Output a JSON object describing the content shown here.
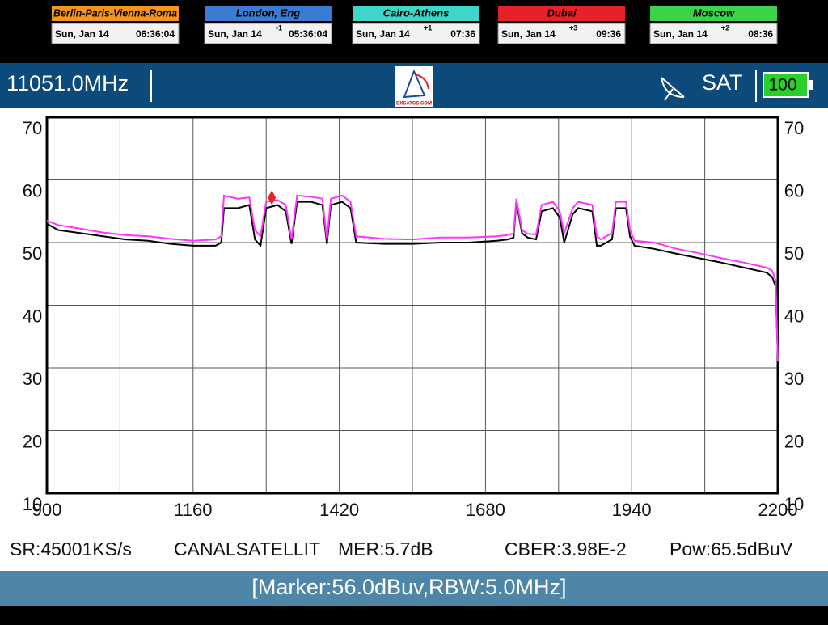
{
  "clocks": [
    {
      "city": "Berlin-Paris-Vienna-Roma",
      "date": "Sun, Jan 14",
      "time": "06:36:04"
    },
    {
      "city": "London, Eng",
      "date": "Sun, Jan 14",
      "offset": "-1",
      "time": "05:36:04"
    },
    {
      "city": "Cairo-Athens",
      "date": "Sun, Jan 14",
      "offset": "+1",
      "time": "07:36"
    },
    {
      "city": "Dubai",
      "date": "Sun, Jan 14",
      "offset": "+3",
      "time": "09:36"
    },
    {
      "city": "Moscow",
      "date": "Sun, Jan 14",
      "offset": "+2",
      "time": "08:36"
    }
  ],
  "header": {
    "frequency": "11051.0MHz",
    "logo": "DXSATCS.COM",
    "band": "SAT",
    "battery": "100"
  },
  "status": {
    "sr": "SR:45001KS/s",
    "provider": "CANALSATELLIT",
    "mer": "MER:5.7dB",
    "cber": "CBER:3.98E-2",
    "power": "Pow:65.5dBuV"
  },
  "footer": "[Marker:56.0dBuv,RBW:5.0MHz]",
  "chart_data": {
    "type": "line",
    "x": [
      900,
      920,
      960,
      1000,
      1040,
      1080,
      1120,
      1160,
      1200,
      1210,
      1215,
      1240,
      1260,
      1270,
      1280,
      1290,
      1310,
      1325,
      1335,
      1345,
      1370,
      1390,
      1398,
      1405,
      1425,
      1440,
      1450,
      1500,
      1550,
      1600,
      1650,
      1700,
      1720,
      1730,
      1735,
      1745,
      1755,
      1770,
      1780,
      1800,
      1812,
      1820,
      1835,
      1845,
      1870,
      1878,
      1885,
      1905,
      1912,
      1930,
      1937,
      1945,
      1980,
      2020,
      2060,
      2100,
      2140,
      2180,
      2190,
      2196,
      2200
    ],
    "series": [
      {
        "color": "#000000",
        "values": [
          53,
          52,
          51.5,
          51,
          50.5,
          50.3,
          49.8,
          49.5,
          49.5,
          50,
          55.5,
          55.5,
          56,
          50.5,
          49.5,
          55.5,
          56,
          55,
          49.8,
          56.5,
          56.5,
          56,
          49.8,
          56,
          56.5,
          55.5,
          50,
          49.8,
          49.8,
          50,
          50,
          50.3,
          50.5,
          50.8,
          56.5,
          51.5,
          50.8,
          50.5,
          55,
          55.5,
          54,
          50,
          54.5,
          55.5,
          55,
          49.5,
          49.5,
          50.5,
          55.5,
          55.5,
          51,
          49.5,
          49,
          48.2,
          47.5,
          46.8,
          46,
          45.2,
          44.5,
          43,
          31.5
        ]
      },
      {
        "color": "#ff33ff",
        "values": [
          53.5,
          52.8,
          52.2,
          51.6,
          51.2,
          51,
          50.6,
          50.3,
          50.5,
          51,
          57.5,
          57,
          57.2,
          52,
          51,
          56.5,
          56.8,
          56,
          50.5,
          57.5,
          57.3,
          57,
          50.5,
          57,
          57.5,
          56.5,
          51,
          50.6,
          50.5,
          50.8,
          50.8,
          51,
          51.2,
          51.5,
          57,
          52,
          51.4,
          51.3,
          56,
          56.5,
          55,
          51.5,
          55.5,
          56.5,
          56,
          51,
          50.5,
          51.5,
          56.5,
          56.5,
          52,
          50.3,
          50,
          49,
          48.3,
          47.5,
          46.8,
          46,
          45.5,
          44,
          31
        ]
      }
    ],
    "marker": {
      "x": 1300,
      "y": 56,
      "color": "#e8202a"
    },
    "xlim": [
      900,
      2200
    ],
    "xticks": [
      900,
      1160,
      1420,
      1680,
      1940,
      2200
    ],
    "ylim": [
      10,
      70
    ],
    "yticks": [
      10,
      20,
      30,
      40,
      50,
      60,
      70
    ],
    "grid": true
  }
}
